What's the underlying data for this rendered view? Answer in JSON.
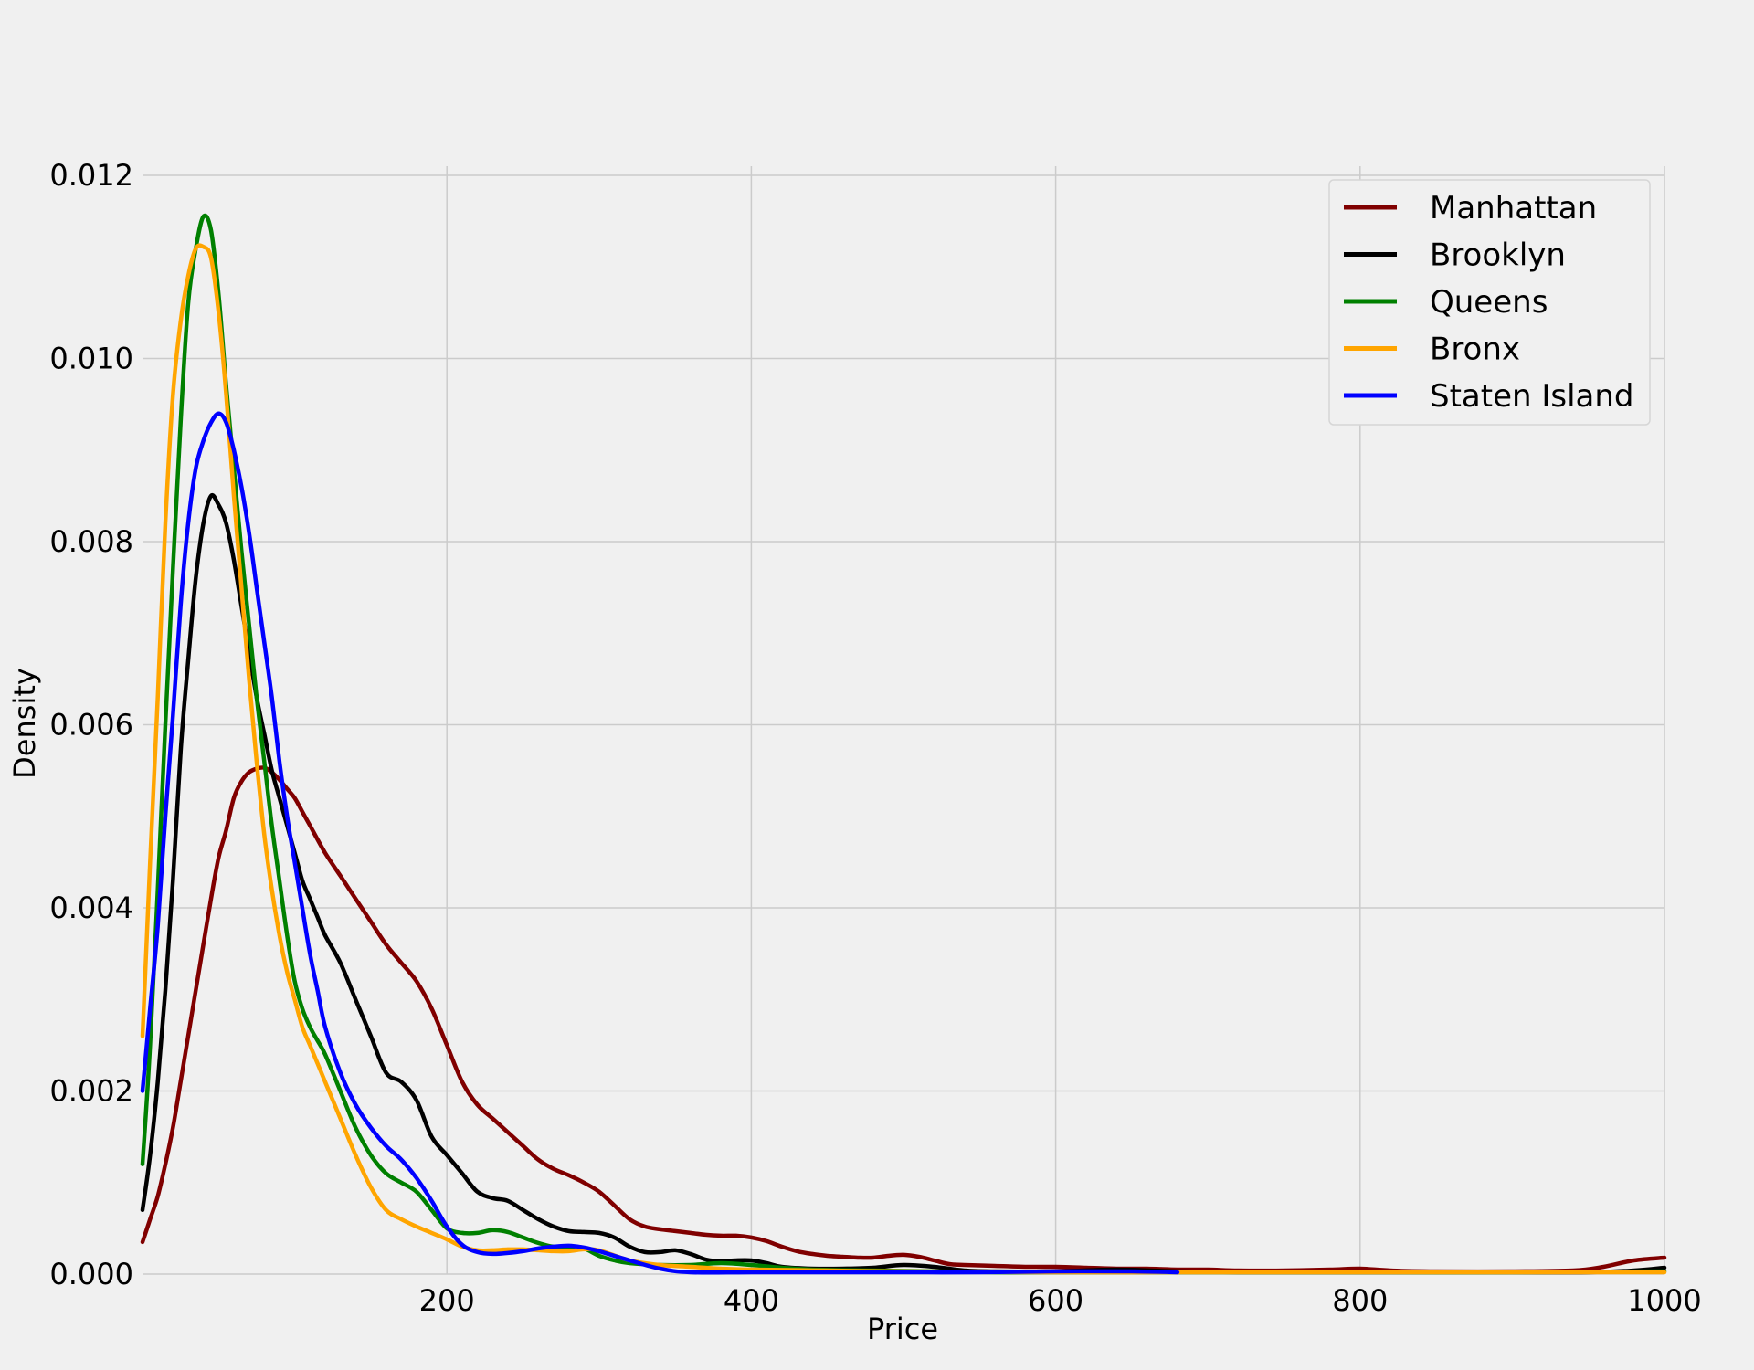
{
  "chart_data": {
    "type": "line",
    "title": "",
    "xlabel": "Price",
    "ylabel": "Density",
    "xlim": [
      0,
      1000
    ],
    "ylim": [
      0,
      0.0121
    ],
    "xticks": [
      200,
      400,
      600,
      800,
      1000
    ],
    "yticks": [
      0.0,
      0.002,
      0.004,
      0.006,
      0.008,
      0.01,
      0.012
    ],
    "ytick_labels": [
      "0.000",
      "0.002",
      "0.004",
      "0.006",
      "0.008",
      "0.010",
      "0.012"
    ],
    "xtick_labels": [
      "200",
      "400",
      "600",
      "800",
      "1000"
    ],
    "grid": true,
    "legend_position": "top-right",
    "series": [
      {
        "name": "Manhattan",
        "color": "#800000",
        "x": [
          0,
          5,
          10,
          15,
          20,
          25,
          30,
          35,
          40,
          45,
          50,
          55,
          60,
          65,
          70,
          75,
          80,
          85,
          90,
          95,
          100,
          105,
          110,
          120,
          130,
          140,
          150,
          160,
          170,
          180,
          190,
          200,
          210,
          220,
          230,
          240,
          250,
          260,
          270,
          280,
          290,
          300,
          310,
          320,
          330,
          340,
          350,
          360,
          370,
          380,
          390,
          400,
          410,
          420,
          430,
          440,
          450,
          460,
          470,
          480,
          490,
          500,
          510,
          520,
          530,
          540,
          560,
          580,
          600,
          620,
          640,
          660,
          680,
          700,
          720,
          750,
          780,
          800,
          820,
          850,
          900,
          940,
          960,
          980,
          1000
        ],
        "y": [
          0.00035,
          0.0006,
          0.00085,
          0.0012,
          0.0016,
          0.0021,
          0.0026,
          0.0031,
          0.0036,
          0.0041,
          0.00455,
          0.00485,
          0.0052,
          0.00538,
          0.00548,
          0.00552,
          0.00553,
          0.00548,
          0.0054,
          0.0053,
          0.0052,
          0.00505,
          0.0049,
          0.0046,
          0.00435,
          0.0041,
          0.00385,
          0.0036,
          0.0034,
          0.0032,
          0.0029,
          0.0025,
          0.0021,
          0.00185,
          0.0017,
          0.00155,
          0.0014,
          0.00125,
          0.00115,
          0.00108,
          0.001,
          0.0009,
          0.00075,
          0.0006,
          0.00052,
          0.00049,
          0.00047,
          0.00045,
          0.00043,
          0.00042,
          0.00042,
          0.0004,
          0.00036,
          0.0003,
          0.00025,
          0.00022,
          0.0002,
          0.00019,
          0.00018,
          0.00018,
          0.0002,
          0.00021,
          0.00019,
          0.00015,
          0.00011,
          0.0001,
          9e-05,
          8e-05,
          8e-05,
          7e-05,
          6e-05,
          6e-05,
          5e-05,
          5e-05,
          4e-05,
          4e-05,
          5e-05,
          6e-05,
          4e-05,
          3e-05,
          3e-05,
          4e-05,
          8e-05,
          0.00015,
          0.00018
        ]
      },
      {
        "name": "Brooklyn",
        "color": "#000000",
        "x": [
          0,
          5,
          10,
          15,
          20,
          25,
          30,
          35,
          40,
          45,
          50,
          55,
          60,
          65,
          70,
          75,
          80,
          85,
          90,
          95,
          100,
          105,
          110,
          115,
          120,
          130,
          140,
          150,
          160,
          170,
          180,
          190,
          200,
          210,
          220,
          230,
          240,
          250,
          260,
          270,
          280,
          290,
          300,
          310,
          320,
          330,
          340,
          350,
          360,
          370,
          380,
          390,
          400,
          410,
          420,
          440,
          460,
          480,
          500,
          520,
          540,
          560,
          600,
          640,
          680,
          720,
          760,
          800,
          850,
          900,
          950,
          980,
          1000
        ],
        "y": [
          0.0007,
          0.0013,
          0.0021,
          0.0031,
          0.0043,
          0.0057,
          0.0067,
          0.0076,
          0.0082,
          0.0085,
          0.0084,
          0.0082,
          0.0078,
          0.0073,
          0.0068,
          0.0063,
          0.0059,
          0.0055,
          0.0052,
          0.0049,
          0.0046,
          0.0043,
          0.0041,
          0.0039,
          0.0037,
          0.0034,
          0.003,
          0.0026,
          0.0022,
          0.0021,
          0.0019,
          0.0015,
          0.0013,
          0.0011,
          0.0009,
          0.00083,
          0.0008,
          0.0007,
          0.0006,
          0.00052,
          0.00047,
          0.00046,
          0.00045,
          0.0004,
          0.0003,
          0.00024,
          0.00024,
          0.00026,
          0.00022,
          0.00016,
          0.00014,
          0.00015,
          0.00015,
          0.00012,
          8e-05,
          6e-05,
          6e-05,
          7e-05,
          0.0001,
          8e-05,
          4e-05,
          3e-05,
          3e-05,
          5e-05,
          3e-05,
          2e-05,
          2e-05,
          2e-05,
          2e-05,
          2e-05,
          2e-05,
          4e-05,
          7e-05
        ]
      },
      {
        "name": "Queens",
        "color": "#008000",
        "x": [
          0,
          5,
          10,
          15,
          20,
          25,
          30,
          35,
          40,
          45,
          50,
          55,
          60,
          65,
          70,
          75,
          80,
          85,
          90,
          95,
          100,
          105,
          110,
          115,
          120,
          130,
          140,
          150,
          160,
          170,
          180,
          190,
          200,
          210,
          220,
          230,
          240,
          250,
          260,
          270,
          280,
          290,
          300,
          310,
          320,
          340,
          360,
          380,
          400,
          420,
          440,
          480,
          520,
          560,
          600,
          700,
          800,
          900,
          1000
        ],
        "y": [
          0.0012,
          0.0025,
          0.0042,
          0.006,
          0.0077,
          0.0093,
          0.0106,
          0.0112,
          0.01155,
          0.0114,
          0.0107,
          0.0097,
          0.0088,
          0.0079,
          0.0071,
          0.0063,
          0.0056,
          0.0049,
          0.0043,
          0.0037,
          0.0032,
          0.0029,
          0.0027,
          0.00255,
          0.0024,
          0.002,
          0.0016,
          0.0013,
          0.0011,
          0.001,
          0.0009,
          0.0007,
          0.0005,
          0.00045,
          0.00045,
          0.00048,
          0.00046,
          0.0004,
          0.00034,
          0.0003,
          0.0003,
          0.00028,
          0.0002,
          0.00015,
          0.00012,
          0.0001,
          0.0001,
          0.00012,
          0.0001,
          7e-05,
          5e-05,
          4e-05,
          3e-05,
          2e-05,
          2e-05,
          2e-05,
          2e-05,
          2e-05,
          3e-05
        ]
      },
      {
        "name": "Bronx",
        "color": "#ffa500",
        "x": [
          0,
          5,
          10,
          15,
          20,
          25,
          30,
          35,
          40,
          45,
          50,
          55,
          60,
          65,
          70,
          75,
          80,
          85,
          90,
          95,
          100,
          105,
          110,
          115,
          120,
          130,
          140,
          150,
          160,
          170,
          180,
          190,
          200,
          210,
          220,
          230,
          240,
          250,
          260,
          270,
          280,
          290,
          300,
          320,
          340,
          360,
          380,
          400,
          450,
          500,
          600,
          700,
          800,
          900,
          1000
        ],
        "y": [
          0.0026,
          0.0045,
          0.0063,
          0.0082,
          0.0096,
          0.0104,
          0.0109,
          0.0112,
          0.01122,
          0.0111,
          0.0105,
          0.0096,
          0.0085,
          0.0075,
          0.0065,
          0.0056,
          0.0048,
          0.0042,
          0.0037,
          0.0033,
          0.003,
          0.0027,
          0.0025,
          0.0023,
          0.0021,
          0.0017,
          0.0013,
          0.00095,
          0.0007,
          0.0006,
          0.00052,
          0.00045,
          0.00038,
          0.0003,
          0.00026,
          0.00026,
          0.00027,
          0.00027,
          0.00026,
          0.00025,
          0.00025,
          0.00027,
          0.00026,
          0.00015,
          0.0001,
          8e-05,
          6e-05,
          5e-05,
          4e-05,
          3e-05,
          2e-05,
          2e-05,
          2e-05,
          2e-05,
          2e-05
        ]
      },
      {
        "name": "Staten Island",
        "color": "#0000ff",
        "x": [
          0,
          5,
          10,
          15,
          20,
          25,
          30,
          35,
          40,
          45,
          50,
          55,
          60,
          65,
          70,
          75,
          80,
          85,
          90,
          95,
          100,
          105,
          110,
          115,
          120,
          130,
          140,
          150,
          160,
          170,
          180,
          190,
          200,
          210,
          220,
          230,
          240,
          250,
          260,
          270,
          280,
          290,
          300,
          320,
          340,
          360,
          400,
          450,
          500,
          550,
          600,
          650,
          680
        ],
        "y": [
          0.002,
          0.0029,
          0.0038,
          0.005,
          0.0061,
          0.0073,
          0.0082,
          0.0088,
          0.0091,
          0.0093,
          0.0094,
          0.0093,
          0.009,
          0.0086,
          0.0081,
          0.0075,
          0.0069,
          0.0063,
          0.0056,
          0.005,
          0.0045,
          0.004,
          0.0035,
          0.0031,
          0.0027,
          0.0022,
          0.00185,
          0.0016,
          0.0014,
          0.00125,
          0.00105,
          0.0008,
          0.00052,
          0.00032,
          0.00024,
          0.00022,
          0.00023,
          0.00025,
          0.00028,
          0.0003,
          0.00031,
          0.00029,
          0.00025,
          0.00015,
          6e-05,
          2e-05,
          2e-05,
          2e-05,
          2e-05,
          2e-05,
          3e-05,
          3e-05,
          2e-05
        ]
      }
    ]
  }
}
